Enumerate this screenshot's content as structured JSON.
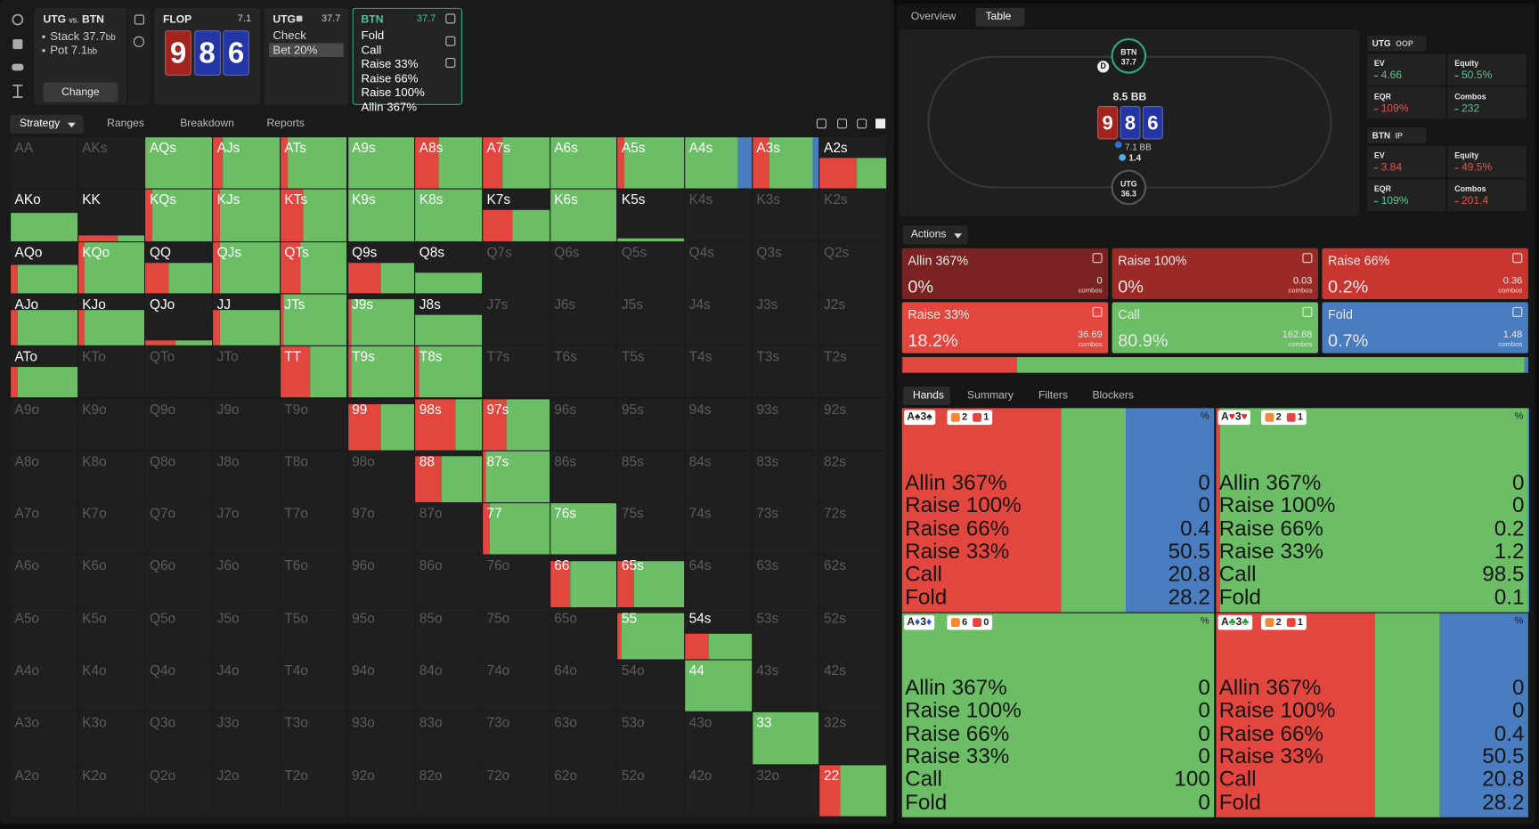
{
  "spot": {
    "player_a": "UTG",
    "vs": "vs.",
    "player_b": "BTN",
    "stack": "Stack 37.7",
    "stack_unit": "bb",
    "pot": "Pot 7.1",
    "pot_unit": "bb",
    "button": "Change"
  },
  "flop": {
    "label": "FLOP",
    "pot": "7.1",
    "cards": [
      {
        "rank": "9",
        "color": "#a3241f"
      },
      {
        "rank": "8",
        "color": "#2436a6"
      },
      {
        "rank": "6",
        "color": "#2436a6"
      }
    ]
  },
  "utg_node": {
    "player": "UTG",
    "stack": "37.7",
    "actions": [
      "Check",
      "Bet 20%"
    ],
    "selected": 1
  },
  "btn_node": {
    "player": "BTN",
    "stack": "37.7",
    "actions": [
      "Fold",
      "Call",
      "Raise 33%",
      "Raise 66%",
      "Raise 100%",
      "Allin 367%"
    ]
  },
  "left_tabs": {
    "items": [
      "Strategy",
      "Ranges",
      "Breakdown",
      "Reports"
    ],
    "selected": 0
  },
  "colors": {
    "raise": "#e2463f",
    "call": "#6bbd66",
    "fold": "#4a7cc0"
  },
  "grid": {
    "rows": [
      [
        {
          "label": "AA"
        },
        {
          "label": "AKs"
        },
        {
          "label": "AQs",
          "h": 1,
          "mix": [
            0,
            1,
            0
          ]
        },
        {
          "label": "AJs",
          "h": 1,
          "mix": [
            0.15,
            0.85,
            0
          ]
        },
        {
          "label": "ATs",
          "h": 1,
          "mix": [
            0.1,
            0.9,
            0
          ]
        },
        {
          "label": "A9s",
          "h": 1,
          "mix": [
            0,
            1,
            0
          ]
        },
        {
          "label": "A8s",
          "h": 1,
          "mix": [
            0.35,
            0.65,
            0
          ]
        },
        {
          "label": "A7s",
          "h": 1,
          "mix": [
            0.3,
            0.7,
            0
          ]
        },
        {
          "label": "A6s",
          "h": 1,
          "mix": [
            0,
            1,
            0
          ]
        },
        {
          "label": "A5s",
          "h": 1,
          "mix": [
            0.1,
            0.9,
            0
          ]
        },
        {
          "label": "A4s",
          "h": 1,
          "mix": [
            0,
            0.8,
            0.2
          ]
        },
        {
          "label": "A3s",
          "h": 1,
          "mix": [
            0.25,
            0.65,
            0.1
          ]
        },
        {
          "label": "A2s",
          "h": 0.6,
          "mix": [
            0.55,
            0.45,
            0
          ]
        }
      ],
      [
        {
          "label": "AKo",
          "h": 0.55,
          "mix": [
            0,
            1,
            0
          ]
        },
        {
          "label": "KK",
          "h": 0.1,
          "mix": [
            0.6,
            0.4,
            0
          ]
        },
        {
          "label": "KQs",
          "h": 1,
          "mix": [
            0.1,
            0.9,
            0
          ]
        },
        {
          "label": "KJs",
          "h": 1,
          "mix": [
            0.1,
            0.9,
            0
          ]
        },
        {
          "label": "KTs",
          "h": 1,
          "mix": [
            0.35,
            0.65,
            0
          ]
        },
        {
          "label": "K9s",
          "h": 1,
          "mix": [
            0,
            1,
            0
          ]
        },
        {
          "label": "K8s",
          "h": 1,
          "mix": [
            0,
            1,
            0
          ]
        },
        {
          "label": "K7s",
          "h": 0.6,
          "mix": [
            0.45,
            0.55,
            0
          ]
        },
        {
          "label": "K6s",
          "h": 1,
          "mix": [
            0,
            1,
            0
          ]
        },
        {
          "label": "K5s",
          "h": 0.05,
          "mix": [
            0,
            1,
            0
          ]
        },
        {
          "label": "K4s"
        },
        {
          "label": "K3s"
        },
        {
          "label": "K2s"
        }
      ],
      [
        {
          "label": "AQo",
          "h": 0.55,
          "mix": [
            0.1,
            0.9,
            0
          ]
        },
        {
          "label": "KQo",
          "h": 1,
          "mix": [
            0.1,
            0.9,
            0
          ]
        },
        {
          "label": "QQ",
          "h": 0.6,
          "mix": [
            0.35,
            0.65,
            0
          ]
        },
        {
          "label": "QJs",
          "h": 1,
          "mix": [
            0.1,
            0.9,
            0
          ]
        },
        {
          "label": "QTs",
          "h": 1,
          "mix": [
            0.3,
            0.7,
            0
          ]
        },
        {
          "label": "Q9s",
          "h": 0.6,
          "mix": [
            0.5,
            0.5,
            0
          ]
        },
        {
          "label": "Q8s",
          "h": 0.4,
          "mix": [
            0,
            1,
            0
          ]
        },
        {
          "label": "Q7s"
        },
        {
          "label": "Q6s"
        },
        {
          "label": "Q5s"
        },
        {
          "label": "Q4s"
        },
        {
          "label": "Q3s"
        },
        {
          "label": "Q2s"
        }
      ],
      [
        {
          "label": "AJo",
          "h": 0.7,
          "mix": [
            0.1,
            0.9,
            0
          ]
        },
        {
          "label": "KJo",
          "h": 0.7,
          "mix": [
            0.1,
            0.9,
            0
          ]
        },
        {
          "label": "QJo",
          "h": 0.1,
          "mix": [
            0.45,
            0.55,
            0
          ]
        },
        {
          "label": "JJ",
          "h": 0.7,
          "mix": [
            0.1,
            0.9,
            0
          ]
        },
        {
          "label": "JTs",
          "h": 1,
          "mix": [
            0.05,
            0.95,
            0
          ]
        },
        {
          "label": "J9s",
          "h": 0.9,
          "mix": [
            0.05,
            0.95,
            0
          ]
        },
        {
          "label": "J8s",
          "h": 0.6,
          "mix": [
            0,
            1,
            0
          ]
        },
        {
          "label": "J7s"
        },
        {
          "label": "J6s"
        },
        {
          "label": "J5s"
        },
        {
          "label": "J4s"
        },
        {
          "label": "J3s"
        },
        {
          "label": "J2s"
        }
      ],
      [
        {
          "label": "ATo",
          "h": 0.6,
          "mix": [
            0.1,
            0.9,
            0
          ]
        },
        {
          "label": "KTo"
        },
        {
          "label": "QTo"
        },
        {
          "label": "JTo"
        },
        {
          "label": "TT",
          "h": 1,
          "mix": [
            0.45,
            0.55,
            0
          ]
        },
        {
          "label": "T9s",
          "h": 1,
          "mix": [
            0.05,
            0.95,
            0
          ]
        },
        {
          "label": "T8s",
          "h": 1,
          "mix": [
            0.05,
            0.95,
            0
          ]
        },
        {
          "label": "T7s"
        },
        {
          "label": "T6s"
        },
        {
          "label": "T5s"
        },
        {
          "label": "T4s"
        },
        {
          "label": "T3s"
        },
        {
          "label": "T2s"
        }
      ],
      [
        {
          "label": "A9o"
        },
        {
          "label": "K9o"
        },
        {
          "label": "Q9o"
        },
        {
          "label": "J9o"
        },
        {
          "label": "T9o"
        },
        {
          "label": "99",
          "h": 0.9,
          "mix": [
            0.5,
            0.5,
            0
          ]
        },
        {
          "label": "98s",
          "h": 1,
          "mix": [
            0.6,
            0.4,
            0
          ]
        },
        {
          "label": "97s",
          "h": 1,
          "mix": [
            0.35,
            0.65,
            0
          ]
        },
        {
          "label": "96s"
        },
        {
          "label": "95s"
        },
        {
          "label": "94s"
        },
        {
          "label": "93s"
        },
        {
          "label": "92s"
        }
      ],
      [
        {
          "label": "A8o"
        },
        {
          "label": "K8o"
        },
        {
          "label": "Q8o"
        },
        {
          "label": "J8o"
        },
        {
          "label": "T8o"
        },
        {
          "label": "98o"
        },
        {
          "label": "88",
          "h": 0.9,
          "mix": [
            0.4,
            0.6,
            0
          ]
        },
        {
          "label": "87s",
          "h": 1,
          "mix": [
            0.05,
            0.95,
            0
          ]
        },
        {
          "label": "86s"
        },
        {
          "label": "85s"
        },
        {
          "label": "84s"
        },
        {
          "label": "83s"
        },
        {
          "label": "82s"
        }
      ],
      [
        {
          "label": "A7o"
        },
        {
          "label": "K7o"
        },
        {
          "label": "Q7o"
        },
        {
          "label": "J7o"
        },
        {
          "label": "T7o"
        },
        {
          "label": "97o"
        },
        {
          "label": "87o"
        },
        {
          "label": "77",
          "h": 1,
          "mix": [
            0.1,
            0.9,
            0
          ]
        },
        {
          "label": "76s",
          "h": 1,
          "mix": [
            0,
            1,
            0
          ]
        },
        {
          "label": "75s"
        },
        {
          "label": "74s"
        },
        {
          "label": "73s"
        },
        {
          "label": "72s"
        }
      ],
      [
        {
          "label": "A6o"
        },
        {
          "label": "K6o"
        },
        {
          "label": "Q6o"
        },
        {
          "label": "J6o"
        },
        {
          "label": "T6o"
        },
        {
          "label": "96o"
        },
        {
          "label": "86o"
        },
        {
          "label": "76o"
        },
        {
          "label": "66",
          "h": 0.9,
          "mix": [
            0.3,
            0.7,
            0
          ]
        },
        {
          "label": "65s",
          "h": 0.9,
          "mix": [
            0.25,
            0.75,
            0
          ]
        },
        {
          "label": "64s"
        },
        {
          "label": "63s"
        },
        {
          "label": "62s"
        }
      ],
      [
        {
          "label": "A5o"
        },
        {
          "label": "K5o"
        },
        {
          "label": "Q5o"
        },
        {
          "label": "J5o"
        },
        {
          "label": "T5o"
        },
        {
          "label": "95o"
        },
        {
          "label": "85o"
        },
        {
          "label": "75o"
        },
        {
          "label": "65o"
        },
        {
          "label": "55",
          "h": 0.9,
          "mix": [
            0.05,
            0.95,
            0
          ]
        },
        {
          "label": "54s",
          "h": 0.5,
          "mix": [
            0.35,
            0.65,
            0
          ]
        },
        {
          "label": "53s"
        },
        {
          "label": "52s"
        }
      ],
      [
        {
          "label": "A4o"
        },
        {
          "label": "K4o"
        },
        {
          "label": "Q4o"
        },
        {
          "label": "J4o"
        },
        {
          "label": "T4o"
        },
        {
          "label": "94o"
        },
        {
          "label": "84o"
        },
        {
          "label": "74o"
        },
        {
          "label": "64o"
        },
        {
          "label": "54o"
        },
        {
          "label": "44",
          "h": 1,
          "mix": [
            0,
            1,
            0
          ]
        },
        {
          "label": "43s"
        },
        {
          "label": "42s"
        }
      ],
      [
        {
          "label": "A3o"
        },
        {
          "label": "K3o"
        },
        {
          "label": "Q3o"
        },
        {
          "label": "J3o"
        },
        {
          "label": "T3o"
        },
        {
          "label": "93o"
        },
        {
          "label": "83o"
        },
        {
          "label": "73o"
        },
        {
          "label": "63o"
        },
        {
          "label": "53o"
        },
        {
          "label": "43o"
        },
        {
          "label": "33",
          "h": 1,
          "mix": [
            0,
            1,
            0
          ]
        },
        {
          "label": "32s"
        }
      ],
      [
        {
          "label": "A2o"
        },
        {
          "label": "K2o"
        },
        {
          "label": "Q2o"
        },
        {
          "label": "J2o"
        },
        {
          "label": "T2o"
        },
        {
          "label": "92o"
        },
        {
          "label": "82o"
        },
        {
          "label": "72o"
        },
        {
          "label": "62o"
        },
        {
          "label": "52o"
        },
        {
          "label": "42o"
        },
        {
          "label": "32o"
        },
        {
          "label": "22",
          "h": 1,
          "mix": [
            0.3,
            0.7,
            0
          ]
        }
      ]
    ]
  },
  "right_tabs": {
    "items": [
      "Overview",
      "Table"
    ],
    "selected": 1
  },
  "table": {
    "btn": {
      "name": "BTN",
      "stack": "37.7"
    },
    "dealer": "D",
    "pot": "8.5 BB",
    "bet": "7.1 BB",
    "chip": "1.4",
    "utg": {
      "name": "UTG",
      "stack": "36.3"
    }
  },
  "stats": [
    {
      "player": "UTG",
      "pos": "OOP",
      "items": [
        {
          "label": "EV",
          "value": "4.66",
          "color": "#5fc48a"
        },
        {
          "label": "Equity",
          "value": "50.5%",
          "color": "#5fc48a"
        },
        {
          "label": "EQR",
          "value": "109%",
          "color": "#e2554d"
        },
        {
          "label": "Combos",
          "value": "232",
          "color": "#5fc48a"
        }
      ]
    },
    {
      "player": "BTN",
      "pos": "IP",
      "items": [
        {
          "label": "EV",
          "value": "3.84",
          "color": "#e2554d"
        },
        {
          "label": "Equity",
          "value": "49.5%",
          "color": "#e2554d"
        },
        {
          "label": "EQR",
          "value": "109%",
          "color": "#5fc48a"
        },
        {
          "label": "Combos",
          "value": "201.4",
          "color": "#e2554d"
        }
      ]
    }
  ],
  "actions_menu": "Actions",
  "combos_label": "combos",
  "actions": [
    {
      "name": "Allin 367%",
      "value": 0,
      "label": "0%",
      "combos": 0,
      "color": "#7a2222"
    },
    {
      "name": "Raise 100%",
      "value": 0,
      "label": "0%",
      "combos": 0.03,
      "color": "#9b2a27"
    },
    {
      "name": "Raise 66%",
      "value": 0.2,
      "label": "0.2%",
      "combos": 0.36,
      "color": "#c9362f"
    },
    {
      "name": "Raise 33%",
      "value": 18.2,
      "label": "18.2%",
      "combos": 36.69,
      "color": "#e2463f"
    },
    {
      "name": "Call",
      "value": 80.9,
      "label": "80.9%",
      "combos": 162.88,
      "color": "#6bbd66"
    },
    {
      "name": "Fold",
      "value": 0.7,
      "label": "0.7%",
      "combos": 1.48,
      "color": "#4a7cc0"
    }
  ],
  "hand_tabs": {
    "items": [
      "Hands",
      "Summary",
      "Filters",
      "Blockers"
    ],
    "selected": 0
  },
  "hand_actions": [
    "Allin 367%",
    "Raise 100%",
    "Raise 66%",
    "Raise 33%",
    "Call",
    "Fold"
  ],
  "hand_pct": "%",
  "hands": [
    {
      "cards": [
        {
          "rank": "A",
          "suit": "♠",
          "color": "#222222"
        },
        {
          "rank": "3",
          "suit": "♠",
          "color": "#222222"
        }
      ],
      "blockers": [
        2,
        1
      ],
      "values": [
        0,
        0,
        0.4,
        50.5,
        20.8,
        28.2
      ]
    },
    {
      "cards": [
        {
          "rank": "A",
          "suit": "♥",
          "color": "#d0302a"
        },
        {
          "rank": "3",
          "suit": "♥",
          "color": "#d0302a"
        }
      ],
      "blockers": [
        2,
        1
      ],
      "values": [
        0,
        0,
        0.2,
        1.2,
        98.5,
        0.1
      ]
    },
    {
      "cards": [
        {
          "rank": "A",
          "suit": "♦",
          "color": "#2a56c0"
        },
        {
          "rank": "3",
          "suit": "♦",
          "color": "#2a56c0"
        }
      ],
      "blockers": [
        6,
        0
      ],
      "values": [
        0,
        0,
        0,
        0,
        100,
        0
      ]
    },
    {
      "cards": [
        {
          "rank": "A",
          "suit": "♣",
          "color": "#2f9a3a"
        },
        {
          "rank": "3",
          "suit": "♣",
          "color": "#2f9a3a"
        }
      ],
      "blockers": [
        2,
        1
      ],
      "values": [
        0,
        0,
        0.4,
        50.5,
        20.8,
        28.2
      ]
    }
  ]
}
